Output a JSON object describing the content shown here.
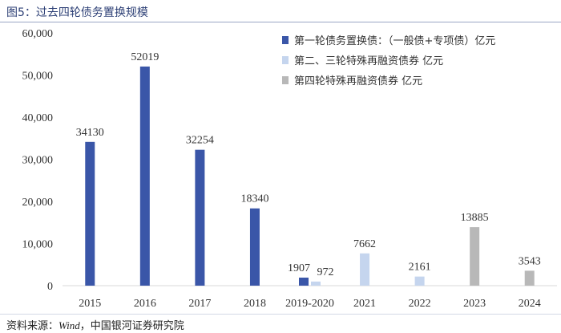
{
  "figure": {
    "title": "图5：过去四轮债务置换规模",
    "source_prefix": "资料来源：",
    "source_en": "Wind",
    "source_suffix": "，中国银河证券研究院"
  },
  "chart_data": {
    "type": "bar",
    "categories": [
      "2015",
      "2016",
      "2017",
      "2018",
      "2019-2020",
      "2021",
      "2022",
      "2023",
      "2024"
    ],
    "ylim": [
      0,
      60000
    ],
    "yticks": [
      0,
      10000,
      20000,
      30000,
      40000,
      50000,
      60000
    ],
    "ytick_labels": [
      "0",
      "10,000",
      "20,000",
      "30,000",
      "40,000",
      "50,000",
      "60,000"
    ],
    "grid": false,
    "legend_position": "top-right",
    "series": [
      {
        "name": "第一轮债务置换债：（一般债+专项债）亿元",
        "color": "#3a56a8",
        "values": [
          34130,
          52019,
          32254,
          18340,
          1907,
          null,
          null,
          null,
          null
        ]
      },
      {
        "name": "第二、三轮特殊再融资债券 亿元",
        "color": "#c5d5ee",
        "values": [
          null,
          null,
          null,
          null,
          972,
          7662,
          2161,
          null,
          null
        ]
      },
      {
        "name": "第四轮特殊再融资债券 亿元",
        "color": "#b8b8b8",
        "values": [
          null,
          null,
          null,
          null,
          null,
          null,
          null,
          13885,
          3543
        ]
      }
    ],
    "data_labels": [
      "34130",
      "52019",
      "32254",
      "18340",
      "1907",
      "972",
      "7662",
      "2161",
      "13885",
      "3543"
    ]
  }
}
